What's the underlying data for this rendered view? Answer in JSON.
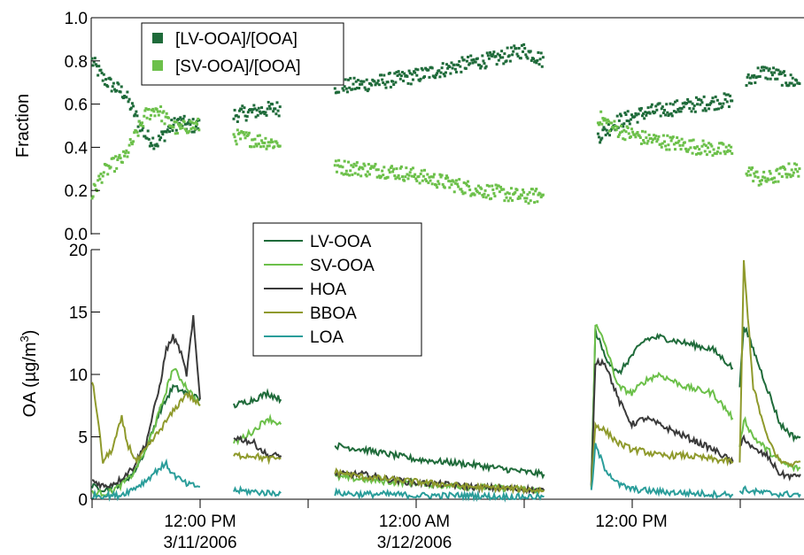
{
  "chart_data": [
    {
      "type": "scatter",
      "panel": "top",
      "ylabel": "Fraction",
      "ylim": [
        0,
        1
      ],
      "y_ticks": [
        "0.0",
        "0.2",
        "0.4",
        "0.6",
        "0.8",
        "1.0"
      ],
      "legend_position": "top-left",
      "series": [
        {
          "name": "[LV-OOA]/[OOA]",
          "color": "#1f6b3a",
          "segments": [
            {
              "x": [
                0.0,
                0.8,
                1.6,
                2.4,
                3.2,
                4.0,
                4.8,
                5.6,
                6.4,
                7.2,
                8.0
              ],
              "y": [
                0.8,
                0.72,
                0.68,
                0.65,
                0.55,
                0.45,
                0.42,
                0.48,
                0.52,
                0.5,
                0.5
              ]
            },
            {
              "x": [
                10.5,
                11.5,
                12.5,
                13.5,
                14.0
              ],
              "y": [
                0.55,
                0.56,
                0.57,
                0.58,
                0.58
              ]
            },
            {
              "x": [
                18.0,
                20.0,
                22.0,
                24.0,
                26.0,
                28.0,
                30.0,
                32.0,
                33.5
              ],
              "y": [
                0.68,
                0.69,
                0.71,
                0.73,
                0.76,
                0.79,
                0.81,
                0.85,
                0.8
              ]
            },
            {
              "x": [
                37.5,
                39.0,
                41.0,
                43.0,
                45.0,
                47.5
              ],
              "y": [
                0.45,
                0.52,
                0.56,
                0.58,
                0.6,
                0.62
              ]
            },
            {
              "x": [
                48.5,
                49.5,
                50.5,
                51.5,
                52.5
              ],
              "y": [
                0.7,
                0.75,
                0.74,
                0.71,
                0.7
              ]
            }
          ]
        },
        {
          "name": "[SV-OOA]/[OOA]",
          "color": "#6cc04a",
          "segments": [
            {
              "x": [
                0.0,
                0.8,
                1.6,
                2.4,
                3.2,
                4.0,
                4.8,
                5.6,
                6.4,
                7.2,
                8.0
              ],
              "y": [
                0.18,
                0.28,
                0.32,
                0.35,
                0.45,
                0.55,
                0.58,
                0.52,
                0.48,
                0.5,
                0.5
              ]
            },
            {
              "x": [
                10.5,
                11.5,
                12.5,
                13.5,
                14.0
              ],
              "y": [
                0.45,
                0.44,
                0.43,
                0.42,
                0.42
              ]
            },
            {
              "x": [
                18.0,
                20.0,
                22.0,
                24.0,
                26.0,
                28.0,
                30.0,
                32.0,
                33.5
              ],
              "y": [
                0.31,
                0.3,
                0.29,
                0.27,
                0.24,
                0.21,
                0.19,
                0.17,
                0.18
              ]
            },
            {
              "x": [
                37.5,
                39.0,
                41.0,
                43.0,
                45.0,
                47.5
              ],
              "y": [
                0.54,
                0.48,
                0.44,
                0.42,
                0.4,
                0.38
              ]
            },
            {
              "x": [
                48.5,
                49.5,
                50.5,
                51.5,
                52.5
              ],
              "y": [
                0.3,
                0.25,
                0.26,
                0.29,
                0.3
              ]
            }
          ]
        }
      ]
    },
    {
      "type": "line",
      "panel": "bottom",
      "ylabel": "OA (µg/m",
      "ylabel_superscript": "3",
      "ylabel_close": ")",
      "ylim": [
        0,
        20
      ],
      "y_ticks": [
        "0",
        "5",
        "10",
        "15",
        "20"
      ],
      "x_ticks": [
        {
          "line1": "12:00 PM",
          "line2": "3/11/2006"
        },
        {
          "line1": "12:00 AM",
          "line2": "3/12/2006"
        },
        {
          "line1": "12:00 PM",
          "line2": ""
        }
      ],
      "legend_position": "top-center",
      "series": [
        {
          "name": "LV-OOA",
          "color": "#1f6b3a",
          "segments": [
            {
              "x": [
                0,
                1,
                2,
                3,
                4,
                5,
                6,
                7,
                8
              ],
              "y": [
                1.0,
                0.8,
                1.2,
                2.0,
                4.0,
                7.0,
                9.0,
                8.5,
                8.0
              ]
            },
            {
              "x": [
                10.5,
                12,
                13,
                14
              ],
              "y": [
                7.5,
                8.0,
                8.5,
                8.0
              ]
            },
            {
              "x": [
                18,
                20,
                22,
                24,
                26,
                28,
                30,
                32,
                33.5
              ],
              "y": [
                4.3,
                4.0,
                3.6,
                3.2,
                3.0,
                2.8,
                2.5,
                2.2,
                2.0
              ]
            },
            {
              "x": [
                37,
                37.3,
                38,
                39,
                40,
                41,
                42,
                44,
                46,
                47.5
              ],
              "y": [
                1.0,
                13.5,
                11.5,
                10.0,
                11.5,
                12.8,
                13.0,
                12.5,
                12.0,
                10.5
              ]
            },
            {
              "x": [
                48,
                48.3,
                49,
                50,
                51,
                52,
                52.5
              ],
              "y": [
                9.0,
                14.0,
                12.0,
                9.0,
                6.0,
                5.0,
                5.0
              ]
            }
          ]
        },
        {
          "name": "SV-OOA",
          "color": "#6cc04a",
          "segments": [
            {
              "x": [
                0,
                1,
                2,
                3,
                4,
                5,
                6,
                7,
                8
              ],
              "y": [
                0.5,
                0.5,
                1.0,
                2.0,
                4.0,
                7.0,
                10.5,
                9.0,
                7.5
              ]
            },
            {
              "x": [
                10.5,
                12,
                13,
                14
              ],
              "y": [
                4.5,
                5.5,
                6.5,
                6.0
              ]
            },
            {
              "x": [
                18,
                20,
                22,
                24,
                26,
                28,
                30,
                32,
                33.5
              ],
              "y": [
                1.8,
                1.6,
                1.4,
                1.3,
                1.1,
                1.0,
                0.9,
                0.8,
                0.7
              ]
            },
            {
              "x": [
                37,
                37.3,
                38,
                39,
                40,
                41,
                42,
                44,
                46,
                47.5
              ],
              "y": [
                1.0,
                14.0,
                12.5,
                9.0,
                8.5,
                9.5,
                10.0,
                9.0,
                8.5,
                6.5
              ]
            },
            {
              "x": [
                48,
                48.3,
                49,
                50,
                51,
                52,
                52.5
              ],
              "y": [
                4.0,
                6.5,
                5.0,
                4.0,
                3.0,
                2.5,
                2.5
              ]
            }
          ]
        },
        {
          "name": "HOA",
          "color": "#3a3a3a",
          "segments": [
            {
              "x": [
                0,
                1,
                2,
                3,
                4,
                5,
                5.5,
                6,
                6.5,
                7,
                7.5,
                8
              ],
              "y": [
                1.5,
                1.0,
                1.5,
                2.5,
                4.5,
                9.0,
                12.0,
                13.0,
                12.0,
                10.0,
                14.5,
                8.0
              ]
            },
            {
              "x": [
                10.5,
                12,
                13,
                14
              ],
              "y": [
                5.0,
                4.5,
                3.5,
                3.5
              ]
            },
            {
              "x": [
                18,
                20,
                22,
                24,
                26,
                28,
                30,
                32,
                33.5
              ],
              "y": [
                2.0,
                2.0,
                1.6,
                1.3,
                1.2,
                1.0,
                0.9,
                0.8,
                0.7
              ]
            },
            {
              "x": [
                37,
                37.3,
                38,
                39,
                40,
                41,
                42,
                44,
                46,
                47.5
              ],
              "y": [
                1.0,
                11.0,
                11.0,
                8.0,
                6.0,
                6.5,
                6.0,
                5.0,
                4.0,
                3.0
              ]
            },
            {
              "x": [
                48,
                48.3,
                49,
                50,
                51,
                52,
                52.5
              ],
              "y": [
                4.0,
                5.0,
                4.0,
                3.5,
                2.0,
                1.8,
                2.0
              ]
            }
          ]
        },
        {
          "name": "BBOA",
          "color": "#8f9a2c",
          "segments": [
            {
              "x": [
                0,
                0.3,
                0.8,
                1.5,
                2.2,
                2.6,
                3.3,
                4.0,
                5.0,
                6.0,
                7.0,
                8.0
              ],
              "y": [
                9.5,
                7.5,
                3.0,
                4.0,
                6.5,
                4.5,
                3.0,
                4.0,
                5.5,
                7.0,
                8.5,
                7.5
              ]
            },
            {
              "x": [
                10.5,
                12,
                13,
                14
              ],
              "y": [
                3.5,
                3.5,
                3.2,
                3.3
              ]
            },
            {
              "x": [
                18,
                20,
                22,
                24,
                26,
                28,
                30,
                32,
                33.5
              ],
              "y": [
                2.2,
                1.8,
                1.6,
                1.4,
                1.2,
                1.0,
                0.9,
                0.8,
                0.7
              ]
            },
            {
              "x": [
                37,
                37.3,
                38,
                39,
                40,
                41,
                42,
                44,
                46,
                47.5
              ],
              "y": [
                1.0,
                6.0,
                5.5,
                4.5,
                4.0,
                3.8,
                3.5,
                3.5,
                3.2,
                3.0
              ]
            },
            {
              "x": [
                48,
                48.3,
                49,
                50,
                51,
                52,
                52.5
              ],
              "y": [
                3.0,
                19.0,
                9.0,
                5.0,
                3.0,
                2.8,
                3.0
              ]
            }
          ]
        },
        {
          "name": "LOA",
          "color": "#2a9d9a",
          "segments": [
            {
              "x": [
                0,
                2,
                3,
                4,
                5,
                5.5,
                6,
                7,
                8
              ],
              "y": [
                0.3,
                0.3,
                0.8,
                1.5,
                2.5,
                2.8,
                2.0,
                1.2,
                1.0
              ]
            },
            {
              "x": [
                10.5,
                12,
                13,
                14
              ],
              "y": [
                0.7,
                0.6,
                0.5,
                0.5
              ]
            },
            {
              "x": [
                18,
                20,
                22,
                24,
                26,
                28,
                30,
                32,
                33.5
              ],
              "y": [
                0.5,
                0.4,
                0.4,
                0.3,
                0.3,
                0.3,
                0.2,
                0.2,
                0.2
              ]
            },
            {
              "x": [
                37,
                37.3,
                38,
                39,
                40,
                41,
                42,
                44,
                46,
                47.5
              ],
              "y": [
                0.5,
                4.3,
                2.5,
                1.2,
                0.8,
                0.7,
                0.6,
                0.5,
                0.4,
                0.4
              ]
            },
            {
              "x": [
                48,
                48.3,
                49,
                50,
                51,
                52,
                52.5
              ],
              "y": [
                0.5,
                0.8,
                0.6,
                0.5,
                0.4,
                0.4,
                0.4
              ]
            }
          ]
        }
      ]
    }
  ]
}
